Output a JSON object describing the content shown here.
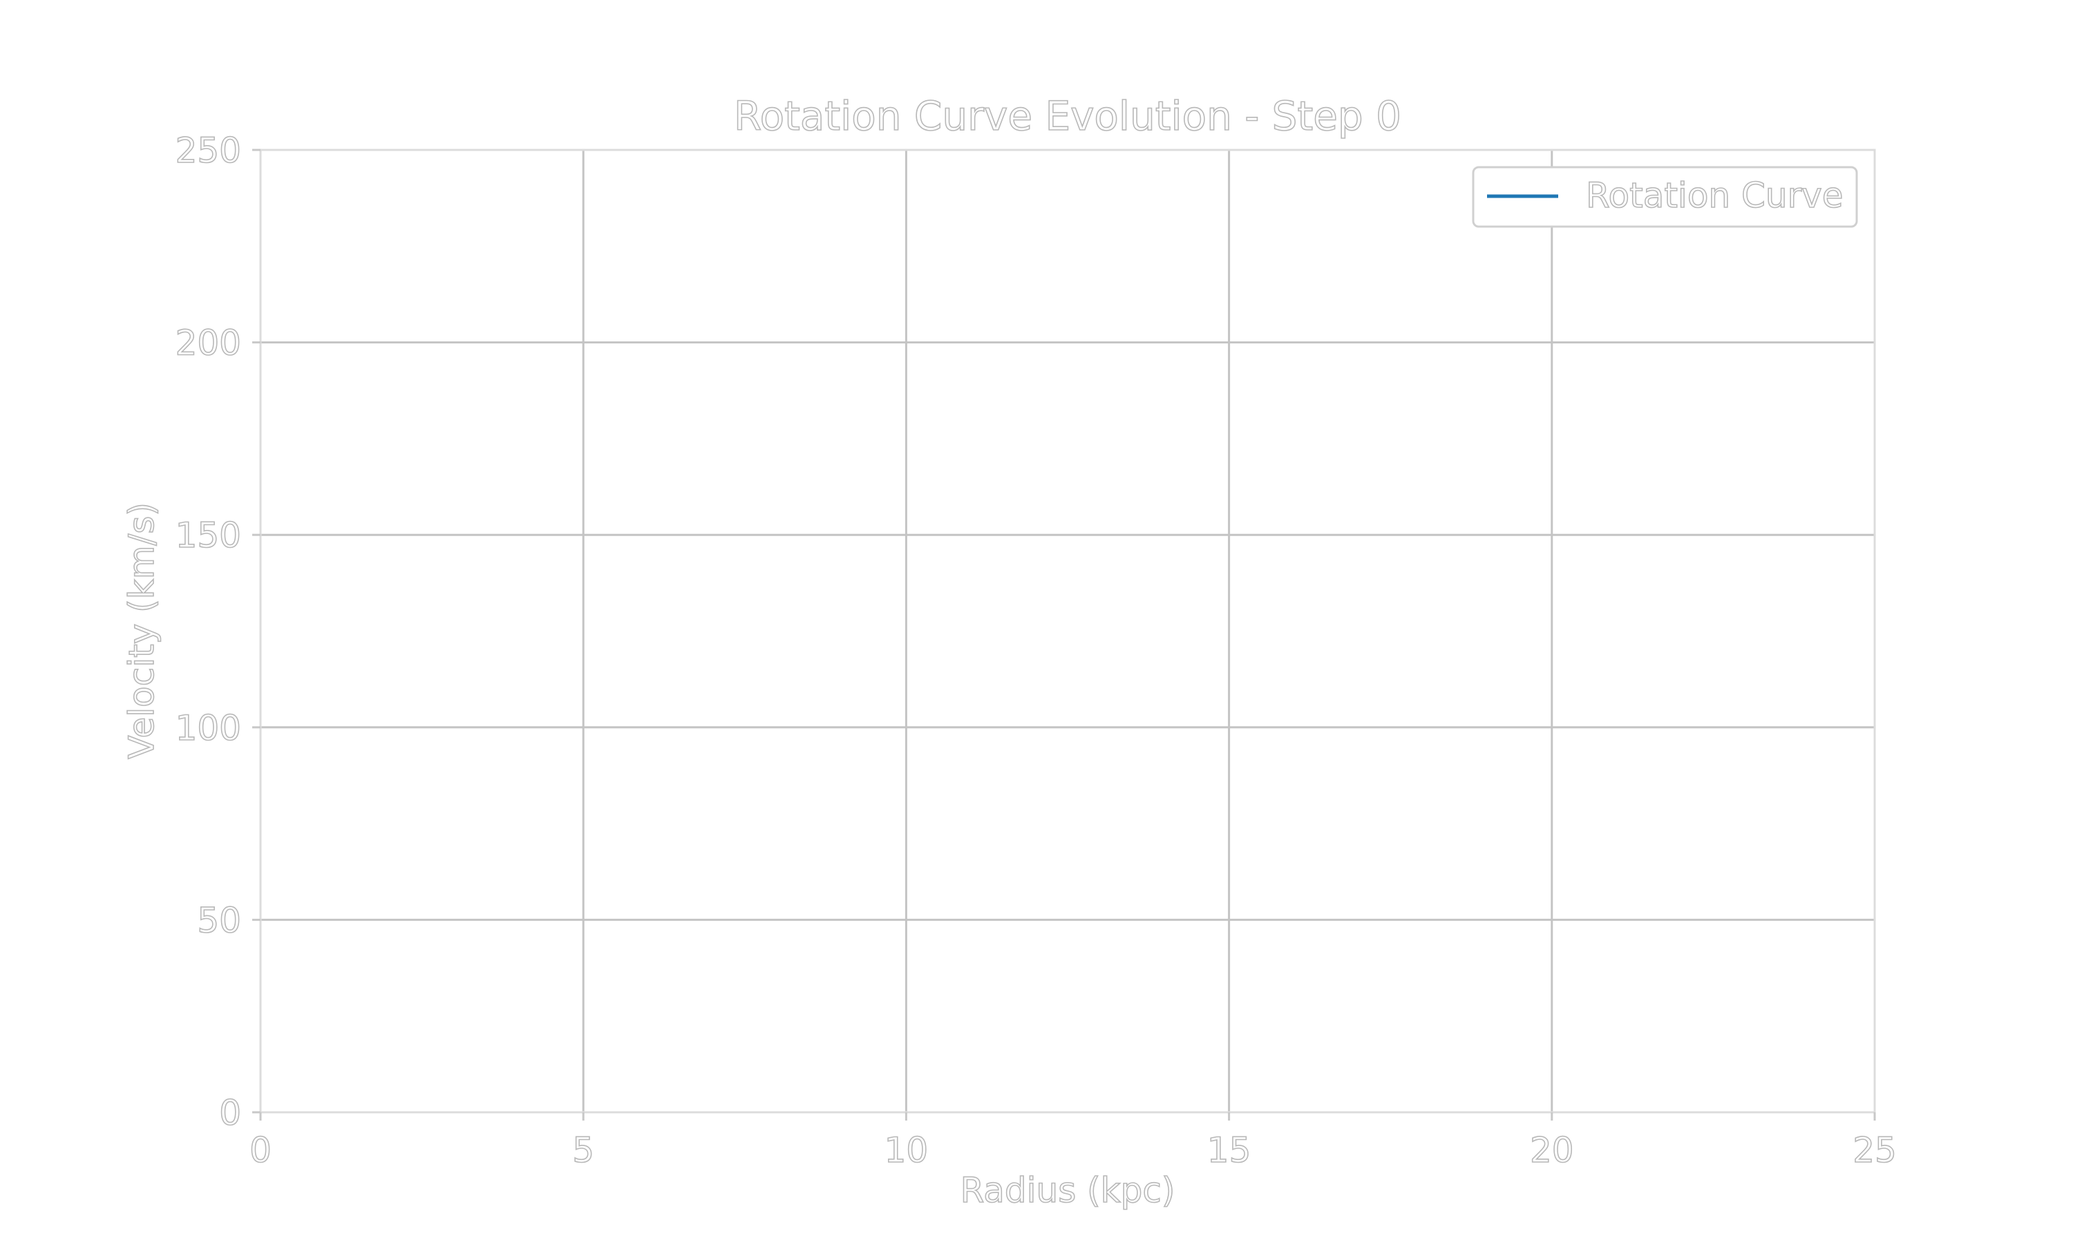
{
  "chart_data": {
    "type": "line",
    "title": "Rotation Curve Evolution - Step 0",
    "xlabel": "Radius (kpc)",
    "ylabel": "Velocity (km/s)",
    "xlim": [
      0,
      25
    ],
    "ylim": [
      0,
      250
    ],
    "xticks": [
      0,
      5,
      10,
      15,
      20,
      25
    ],
    "yticks": [
      0,
      50,
      100,
      150,
      200,
      250
    ],
    "xtick_labels": [
      "0",
      "5",
      "10",
      "15",
      "20",
      "25"
    ],
    "ytick_labels": [
      "0",
      "50",
      "100",
      "150",
      "200",
      "250"
    ],
    "grid": true,
    "legend_position": "top-right",
    "series": [
      {
        "name": "Rotation Curve",
        "color": "#1f77b4",
        "x": [],
        "y": []
      }
    ]
  },
  "colors": {
    "grid": "#c4c4c4",
    "text_outline": "#b8b8b8",
    "series": "#1f77b4"
  }
}
